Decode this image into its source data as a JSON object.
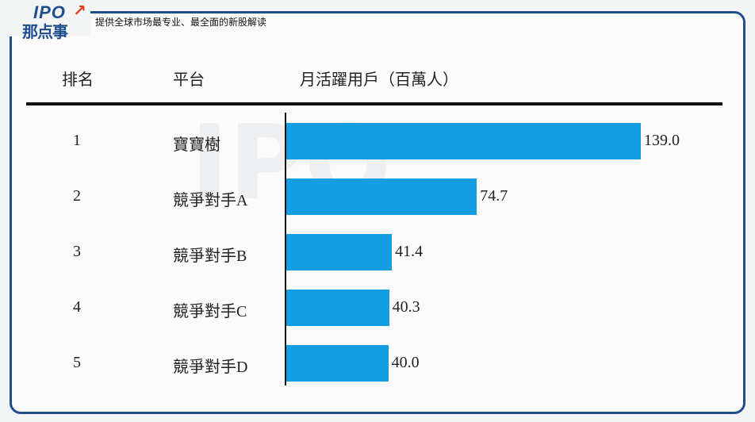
{
  "header": {
    "logo_top": "IPO",
    "logo_bottom": "那点事",
    "tagline": "提供全球市场最专业、最全面的新股解读"
  },
  "colors": {
    "bar": "#129ee0",
    "frame": "#1f4e8c",
    "logo_arrow": "#e03a1e"
  },
  "chart_data": {
    "type": "bar",
    "orientation": "horizontal",
    "columns": [
      "排名",
      "平台",
      "月活躍用戶（百萬人）"
    ],
    "ranks": [
      "1",
      "2",
      "3",
      "4",
      "5"
    ],
    "categories": [
      "寶寶樹",
      "競爭對手A",
      "競爭對手B",
      "競爭對手C",
      "競爭對手D"
    ],
    "values": [
      139.0,
      74.7,
      41.4,
      40.3,
      40.0
    ],
    "labels": [
      "139.0",
      "74.7",
      "41.4",
      "40.3",
      "40.0"
    ]
  }
}
